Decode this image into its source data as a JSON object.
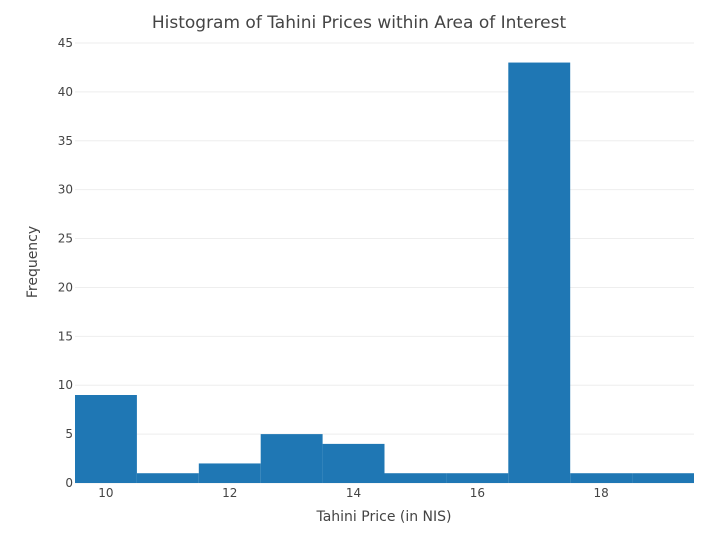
{
  "chart_data": {
    "type": "bar",
    "title": "Histogram of Tahini Prices within Area of Interest",
    "xlabel": "Tahini Price (in NIS)",
    "ylabel": "Frequency",
    "bins": [
      {
        "x0": 9.5,
        "x1": 10.5,
        "count": 9
      },
      {
        "x0": 10.5,
        "x1": 11.5,
        "count": 1
      },
      {
        "x0": 11.5,
        "x1": 12.5,
        "count": 2
      },
      {
        "x0": 12.5,
        "x1": 13.5,
        "count": 5
      },
      {
        "x0": 13.5,
        "x1": 14.5,
        "count": 4
      },
      {
        "x0": 14.5,
        "x1": 15.5,
        "count": 1
      },
      {
        "x0": 15.5,
        "x1": 16.5,
        "count": 1
      },
      {
        "x0": 16.5,
        "x1": 17.5,
        "count": 43
      },
      {
        "x0": 17.5,
        "x1": 18.5,
        "count": 1
      },
      {
        "x0": 18.5,
        "x1": 19.5,
        "count": 1
      }
    ],
    "xlim": [
      9.5,
      19.5
    ],
    "ylim": [
      0,
      45
    ],
    "xticks": [
      10,
      12,
      14,
      16,
      18
    ],
    "yticks": [
      0,
      5,
      10,
      15,
      20,
      25,
      30,
      35,
      40,
      45
    ],
    "bar_color": "#1f77b4",
    "grid": true
  }
}
